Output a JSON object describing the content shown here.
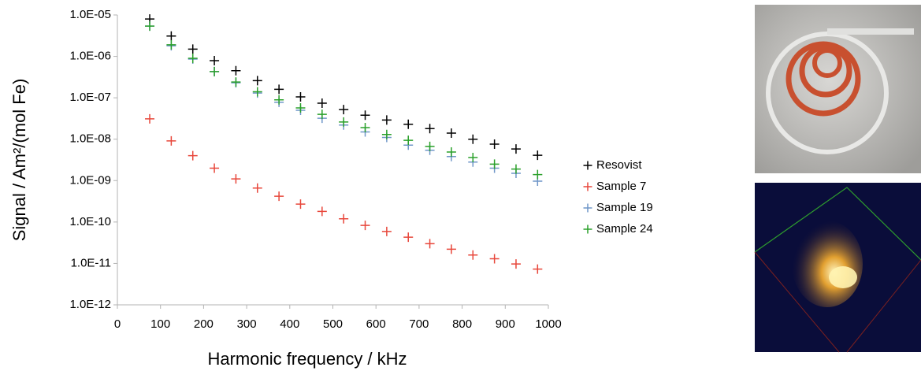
{
  "chart_data": {
    "type": "scatter",
    "xlabel": "Harmonic frequency / kHz",
    "ylabel": "Signal / Am²/(mol Fe)",
    "log_y": true,
    "grid": false,
    "legend": "right",
    "xlim": [
      0,
      1000
    ],
    "xticks": [
      0,
      100,
      200,
      300,
      400,
      500,
      600,
      700,
      800,
      900,
      1000
    ],
    "ylim": [
      1e-12,
      1e-05
    ],
    "yticks": [
      {
        "value": 1e-12,
        "label": "1.0E-12"
      },
      {
        "value": 1e-11,
        "label": "1.0E-11"
      },
      {
        "value": 1e-10,
        "label": "1.0E-10"
      },
      {
        "value": 1e-09,
        "label": "1.0E-09"
      },
      {
        "value": 1e-08,
        "label": "1.0E-08"
      },
      {
        "value": 1e-07,
        "label": "1.0E-07"
      },
      {
        "value": 1e-06,
        "label": "1.0E-06"
      },
      {
        "value": 1e-05,
        "label": "1.0E-05"
      }
    ],
    "x": [
      75,
      125,
      175,
      225,
      275,
      325,
      375,
      425,
      475,
      525,
      575,
      625,
      675,
      725,
      775,
      825,
      875,
      925,
      975
    ],
    "series": [
      {
        "name": "Resovist",
        "color": "#000000",
        "values": [
          8e-06,
          3.1e-06,
          1.5e-06,
          7.9e-07,
          4.5e-07,
          2.6e-07,
          1.6e-07,
          1.05e-07,
          7.4e-08,
          5.2e-08,
          3.8e-08,
          2.9e-08,
          2.3e-08,
          1.8e-08,
          1.4e-08,
          1e-08,
          7.6e-09,
          5.8e-09,
          4.1e-09
        ]
      },
      {
        "name": "Sample 7",
        "color": "#e8473b",
        "values": [
          3.1e-08,
          9.1e-09,
          4e-09,
          2e-09,
          1.1e-09,
          6.6e-10,
          4.2e-10,
          2.7e-10,
          1.8e-10,
          1.2e-10,
          8.3e-11,
          5.9e-11,
          4.3e-11,
          3e-11,
          2.2e-11,
          1.6e-11,
          1.3e-11,
          9.7e-12,
          7.3e-12
        ]
      },
      {
        "name": "Sample 19",
        "color": "#6f96c8",
        "values": [
          5.4e-06,
          1.8e-06,
          8.6e-07,
          4.3e-07,
          2.3e-07,
          1.3e-07,
          7.8e-08,
          5e-08,
          3.2e-08,
          2.2e-08,
          1.5e-08,
          1.1e-08,
          7.2e-09,
          5.4e-09,
          3.8e-09,
          2.8e-09,
          2e-09,
          1.5e-09,
          9.7e-10
        ]
      },
      {
        "name": "Sample 24",
        "color": "#2aa02a",
        "values": [
          5.4e-06,
          1.9e-06,
          9e-07,
          4.3e-07,
          2.4e-07,
          1.4e-07,
          8.9e-08,
          5.7e-08,
          4e-08,
          2.6e-08,
          1.9e-08,
          1.3e-08,
          9.4e-09,
          6.7e-09,
          4.9e-09,
          3.6e-09,
          2.5e-09,
          1.9e-09,
          1.4e-09
        ]
      }
    ]
  }
}
